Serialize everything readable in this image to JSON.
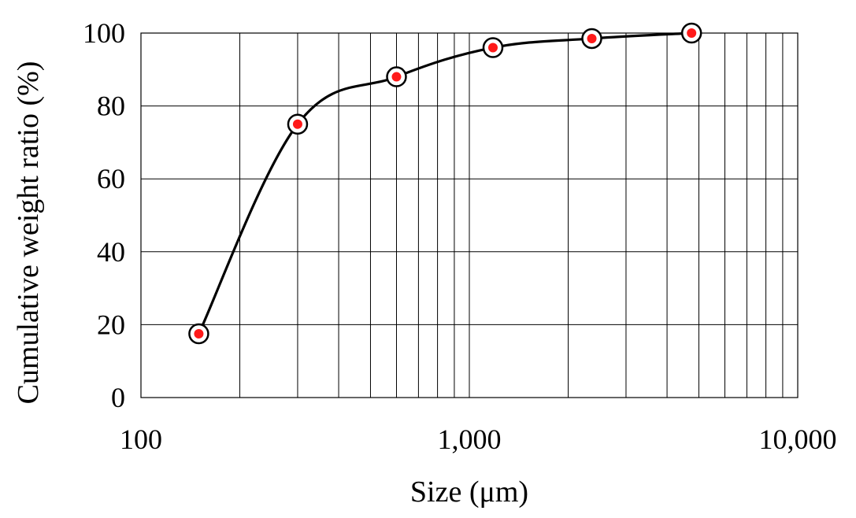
{
  "chart_data": {
    "type": "scatter",
    "xlabel": "Size (μm)",
    "ylabel": "Cumulative weight ratio (%)",
    "xscale": "log",
    "xlim": [
      100,
      10000
    ],
    "ylim": [
      0,
      100
    ],
    "x_ticks": [
      100,
      1000,
      10000
    ],
    "x_tick_labels": [
      "100",
      "1,000",
      "10,000"
    ],
    "y_ticks": [
      0,
      20,
      40,
      60,
      80,
      100
    ],
    "y_tick_labels": [
      "0",
      "20",
      "40",
      "60",
      "80",
      "100"
    ],
    "grid": true,
    "series": [
      {
        "x": [
          150,
          300,
          600,
          1180,
          2360,
          4750
        ],
        "y": [
          17.5,
          75,
          88,
          96,
          98.5,
          100
        ],
        "line": "smooth",
        "line_color": "#000000",
        "marker_fill": "#ff1a1a",
        "marker_ring": "#000000"
      }
    ]
  }
}
